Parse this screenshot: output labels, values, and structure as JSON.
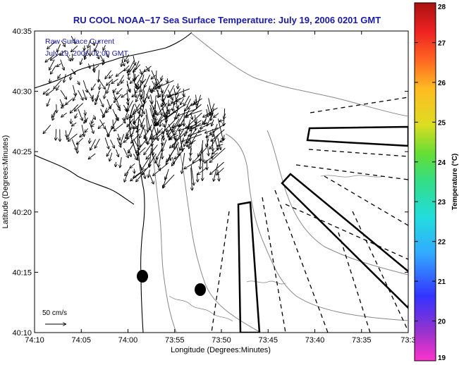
{
  "title": "RU COOL  NOAA−17  Sea Surface Temperature:  July 19, 2006 0201 GMT",
  "annotations": {
    "line1": "Raw Surface Current",
    "line2": "July 19, 2006 02:00 GMT",
    "scale": "50 cm/s"
  },
  "axes": {
    "xlabel": "Longitude (Degrees:Minutes)",
    "ylabel": "Latitude (Degrees:Minutes)",
    "xticks": [
      "74:10",
      "74:05",
      "74:00",
      "73:55",
      "73:50",
      "73:45",
      "73:40",
      "73:35",
      "73:3"
    ],
    "yticks": [
      "40:35",
      "40:30",
      "40:25",
      "40:20",
      "40:15",
      "40:10"
    ]
  },
  "colorbar": {
    "title": "Temperature (°C)",
    "ticks": [
      "28",
      "27",
      "26",
      "25",
      "24",
      "23",
      "22",
      "21",
      "20",
      "19"
    ],
    "min": 19,
    "max": 28,
    "colors": [
      "#ff33cc",
      "#9933cc",
      "#3333ff",
      "#33aaff",
      "#22dddd",
      "#33dd88",
      "#66dd33",
      "#dddd22",
      "#ffbb22",
      "#ff6622",
      "#ee2222",
      "#aa1111"
    ]
  },
  "chart_data": {
    "type": "map",
    "title": "RU COOL  NOAA−17  Sea Surface Temperature:  July 19, 2006 0201 GMT",
    "xlabel": "Longitude (Degrees:Minutes)",
    "ylabel": "Latitude (Degrees:Minutes)",
    "xlim": [
      "74:10",
      "73:30"
    ],
    "ylim": [
      "40:10",
      "40:35"
    ],
    "grid": false
  }
}
